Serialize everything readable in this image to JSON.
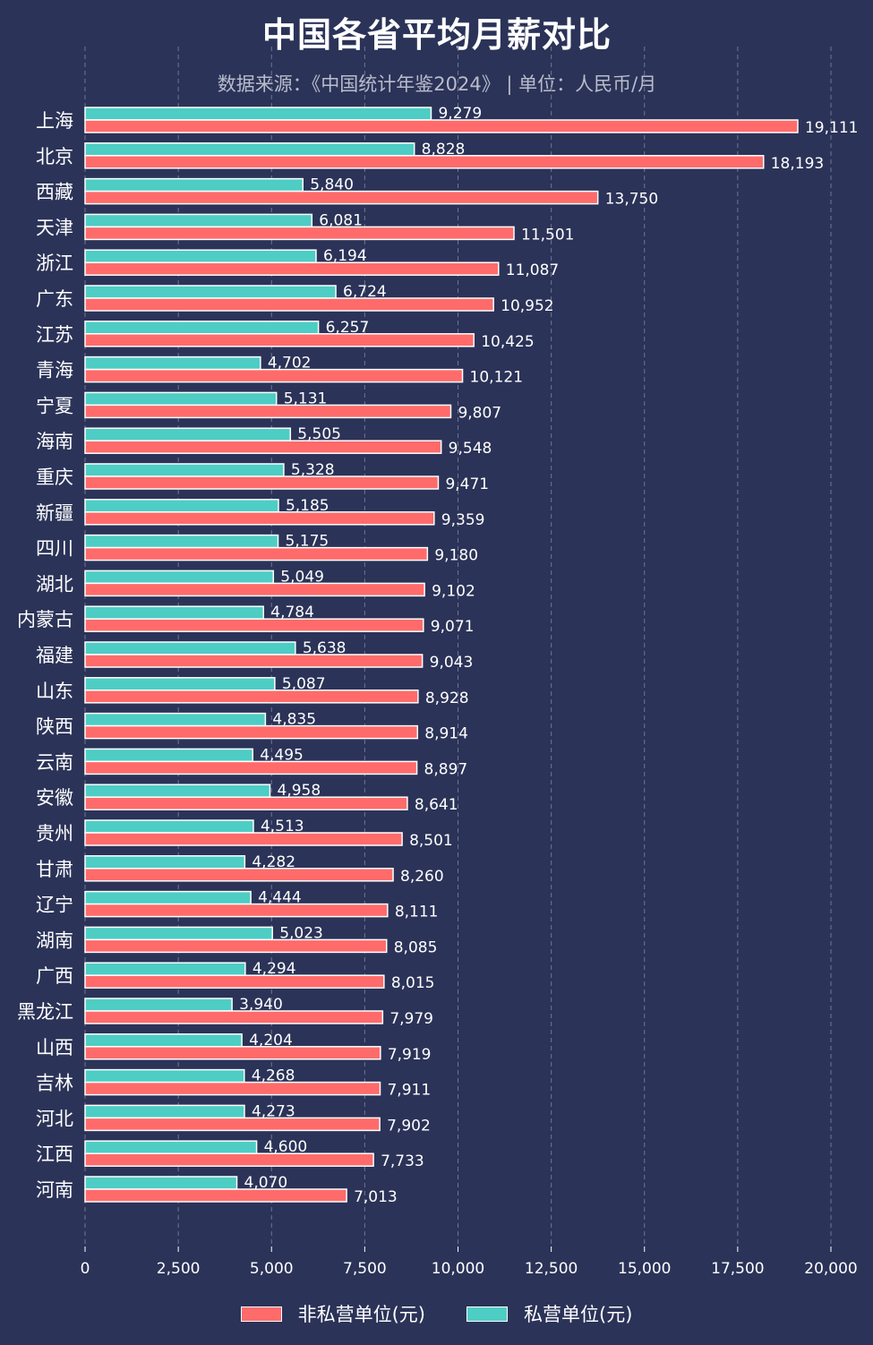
{
  "chart_data": {
    "type": "bar",
    "orientation": "horizontal",
    "title": "中国各省平均月薪对比",
    "subtitle": "数据来源：《中国统计年鉴2024》 | 单位：人民币/月",
    "categories": [
      "上海",
      "北京",
      "西藏",
      "天津",
      "浙江",
      "广东",
      "江苏",
      "青海",
      "宁夏",
      "海南",
      "重庆",
      "新疆",
      "四川",
      "湖北",
      "内蒙古",
      "福建",
      "山东",
      "陕西",
      "云南",
      "安徽",
      "贵州",
      "甘肃",
      "辽宁",
      "湖南",
      "广西",
      "黑龙江",
      "山西",
      "吉林",
      "河北",
      "江西",
      "河南"
    ],
    "series": [
      {
        "name": "非私营单位(元)",
        "color": "#ff6b6b",
        "values": [
          19111,
          18193,
          13750,
          11501,
          11087,
          10952,
          10425,
          10121,
          9807,
          9548,
          9471,
          9359,
          9180,
          9102,
          9071,
          9043,
          8928,
          8914,
          8897,
          8641,
          8501,
          8260,
          8111,
          8085,
          8015,
          7979,
          7919,
          7911,
          7902,
          7733,
          7013
        ]
      },
      {
        "name": "私营单位(元)",
        "color": "#4ecdc4",
        "values": [
          9279,
          8828,
          5840,
          6081,
          6194,
          6724,
          6257,
          4702,
          5131,
          5505,
          5328,
          5185,
          5175,
          5049,
          4784,
          5638,
          5087,
          4835,
          4495,
          4958,
          4513,
          4282,
          4444,
          5023,
          4294,
          3940,
          4204,
          4268,
          4273,
          4600,
          4070
        ]
      }
    ],
    "xlim": [
      0,
      20000
    ],
    "xticks": [
      0,
      2500,
      5000,
      7500,
      10000,
      12500,
      15000,
      17500,
      20000
    ],
    "grid": "vertical-dashed",
    "legend_position": "bottom-center"
  },
  "colors": {
    "background": "#2b3358",
    "grid": "#6f7593",
    "text": "#ffffff"
  }
}
